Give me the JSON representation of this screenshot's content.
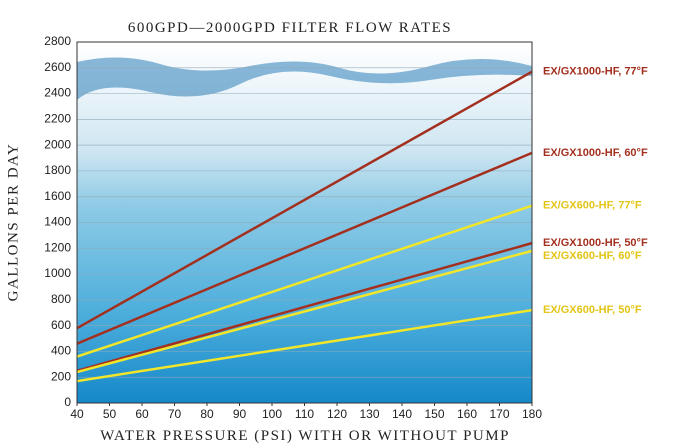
{
  "chart_data": {
    "type": "line",
    "title": "600GPD—2000GPD FILTER FLOW RATES",
    "x_label": "WATER PRESSURE (PSI) WITH OR WITHOUT PUMP",
    "y_label": "GALLONS PER DAY",
    "x": [
      40,
      180
    ],
    "series": [
      {
        "name": "EX/GX1000-HF, 77°F",
        "color": "#a3301f",
        "values": [
          580,
          2570
        ]
      },
      {
        "name": "EX/GX1000-HF, 60°F",
        "color": "#a3301f",
        "values": [
          460,
          1940
        ]
      },
      {
        "name": "EX/GX600-HF, 77°F",
        "color": "#f2e62a",
        "values": [
          360,
          1530
        ]
      },
      {
        "name": "EX/GX1000-HF, 50°F",
        "color": "#a3301f",
        "values": [
          250,
          1240
        ]
      },
      {
        "name": "EX/GX600-HF, 60°F",
        "color": "#f2e62a",
        "values": [
          240,
          1180
        ]
      },
      {
        "name": "EX/GX600-HF, 50°F",
        "color": "#f2e62a",
        "values": [
          170,
          720
        ]
      }
    ],
    "xlim": [
      40,
      180
    ],
    "xticks": [
      40,
      50,
      60,
      70,
      80,
      90,
      100,
      110,
      120,
      130,
      140,
      150,
      160,
      170,
      180
    ],
    "ylim": [
      0,
      2800
    ],
    "yticks": [
      0,
      200,
      400,
      600,
      800,
      1000,
      1200,
      1400,
      1600,
      1800,
      2000,
      2200,
      2400,
      2600,
      2800
    ],
    "grid": true
  }
}
